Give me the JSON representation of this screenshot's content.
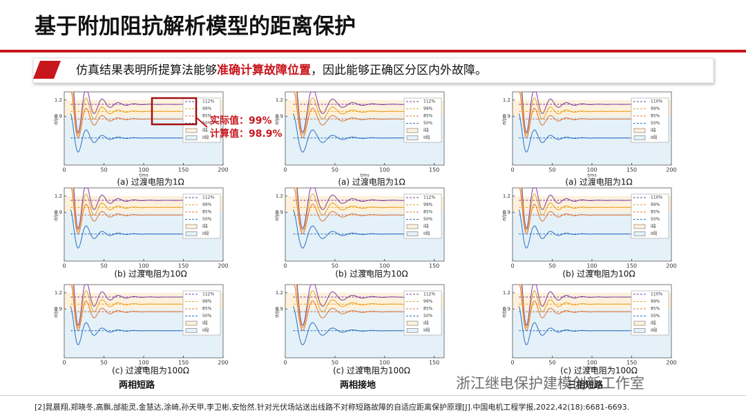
{
  "header": {
    "title": "基于附加阻抗解析模型的距离保护",
    "subtitle_pre": "仿真结果表明所提算法能够",
    "subtitle_highlight": "准确计算故障位置",
    "subtitle_post": "，因此能够正确区分区内外故障。"
  },
  "annotation": {
    "actual": "实际值：99%",
    "computed": "计算值：98.9%"
  },
  "axes": {
    "ylabel": "σ/pu",
    "xlabel": "t/ms",
    "yticks": [
      0.9,
      1.2
    ]
  },
  "columns": [
    {
      "xticks": [
        0,
        50,
        100,
        150,
        200
      ],
      "legend": [
        "112%",
        "99%",
        "85%",
        "50%",
        "I段",
        "II段"
      ],
      "group": "两相短路"
    },
    {
      "xticks": [
        0,
        50,
        100,
        150
      ],
      "legend": [
        "112%",
        "99%",
        "85%",
        "50%",
        "I段",
        "II段"
      ],
      "group": "两相接地"
    },
    {
      "xticks": [
        0,
        50,
        100,
        150,
        200
      ],
      "legend": [
        "110%",
        "99%",
        "85%",
        "50%",
        "I段",
        "II段"
      ],
      "group": "三相短路"
    }
  ],
  "captions": [
    [
      "(a) 过渡电阻为1Ω",
      "(b) 过渡电阻为10Ω",
      "(c) 过渡电阻为100Ω"
    ],
    [
      "(a) 过渡电阻为1Ω",
      "(b) 过渡电阻为10Ω",
      "(c) 过渡电阻为100Ω"
    ],
    [
      "(a) 过渡电阻为1Ω",
      "(b) 过渡电阻为10Ω",
      "(c) 过渡电阻为100Ω"
    ]
  ],
  "watermark": "浙江继电保护建模创新工作室",
  "reference": "[2]晁晨翔,郑晓冬,高飘,邰能灵,金慧达,涂崎,孙天甲,李卫彬,安怡然.针对光伏场站送出线路不对称短路故障的自适应距离保护原理[J].中国电机工程学报,2022,42(18):6681-6693."
}
